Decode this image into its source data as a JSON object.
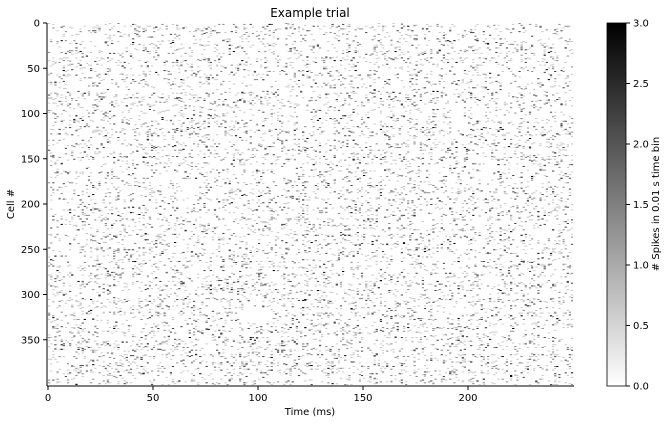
{
  "chart_data": {
    "type": "heatmap",
    "title": "Example trial",
    "xlabel": "Time (ms)",
    "ylabel": "Cell #",
    "x_range": [
      0,
      250
    ],
    "y_range": [
      0,
      400
    ],
    "y_inverted": true,
    "n_cells": 400,
    "n_time_bins": 250,
    "x_ticks": [
      0,
      50,
      100,
      150,
      200
    ],
    "y_ticks": [
      0,
      50,
      100,
      150,
      200,
      250,
      300,
      350
    ],
    "colormap": "gray_r",
    "colorbar": {
      "label": "# Spikes in 0.01 s time bin",
      "range": [
        0,
        3
      ],
      "ticks": [
        "0.0",
        "0.5",
        "1.0",
        "1.5",
        "2.0",
        "2.5",
        "3.0"
      ]
    },
    "grid": false,
    "colors": {
      "low": "#ffffff",
      "high": "#000000"
    }
  }
}
